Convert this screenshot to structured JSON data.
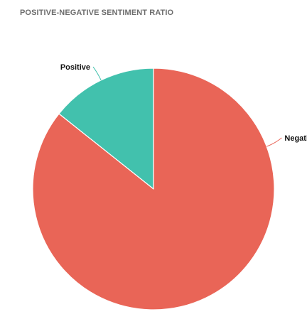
{
  "widget": {
    "title": "POSITIVE-NEGATIVE SENTIMENT RATIO"
  },
  "chart_data": {
    "type": "pie",
    "title": "POSITIVE-NEGATIVE SENTIMENT RATIO",
    "start_angle_deg": 0,
    "direction": "counterclockwise",
    "slices": [
      {
        "label": "Positive",
        "value": 14.3,
        "color": "#42c1ad"
      },
      {
        "label": "Negative",
        "value": 85.7,
        "color": "#e96557"
      }
    ],
    "legend": "none",
    "labels": "outside-with-connectors"
  }
}
